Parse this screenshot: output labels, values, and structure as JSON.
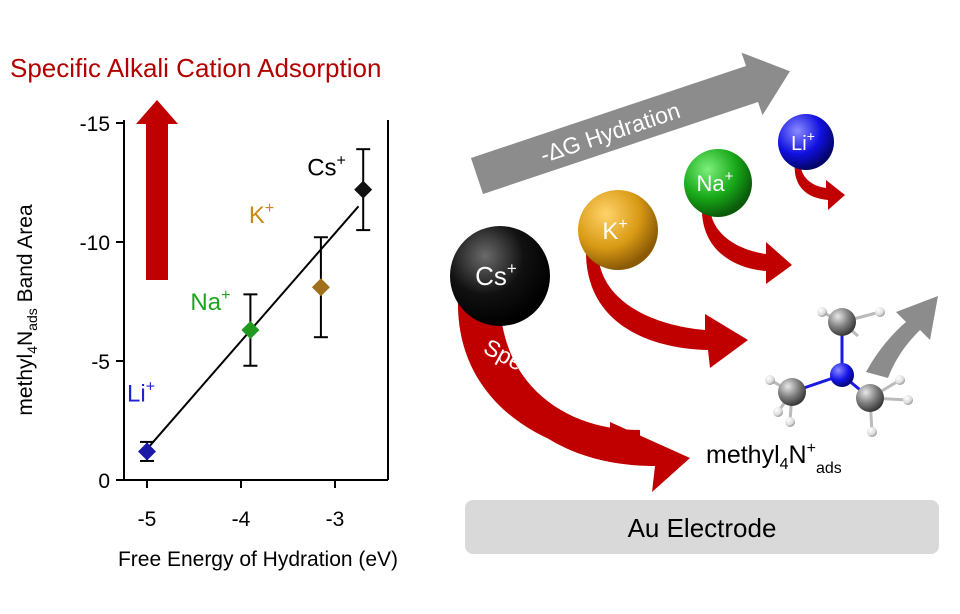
{
  "headline": "Specific Alkali Cation Adsorption",
  "colors": {
    "dark_red": "#b20000",
    "arrow_red": "#c00000",
    "gray_arrow": "#8c8c8c",
    "electrode": "#d9d9d9",
    "li": "#1f1fd6",
    "na": "#1ea51e",
    "k": "#c88c14",
    "cs": "#000000",
    "marker_li": "#1a1aa6",
    "marker_na": "#1f9a1f",
    "marker_k": "#a0701a",
    "marker_cs": "#111111"
  },
  "chart_data": {
    "type": "scatter",
    "xlabel": "Free Energy of Hydration (eV)",
    "ylabel_parts": {
      "base": "methyl",
      "sub1": "4",
      "mid": "N",
      "sub2": "ads",
      "end": " Band Area"
    },
    "xlim": [
      -5.3,
      -2.2
    ],
    "ylim": [
      0.5,
      -15.5
    ],
    "x_ticks": [
      -5,
      -4,
      -3
    ],
    "y_ticks": [
      -15,
      -10,
      -5,
      0
    ],
    "grid": false,
    "fit_line": {
      "x": [
        -5.0,
        -2.75
      ],
      "y": [
        -1.3,
        -11.5
      ]
    },
    "series": [
      {
        "points": [
          {
            "label": "Li",
            "sup": "+",
            "x": -5.0,
            "y": -1.2,
            "err": 0.4,
            "color_key": "marker_li",
            "text_color_key": "li"
          },
          {
            "label": "Na",
            "sup": "+",
            "x": -3.9,
            "y": -6.3,
            "err": 1.5,
            "color_key": "marker_na",
            "text_color_key": "na"
          },
          {
            "label": "K",
            "sup": "+",
            "x": -3.15,
            "y": -8.1,
            "err": 2.1,
            "color_key": "marker_k",
            "text_color_key": "k"
          },
          {
            "label": "Cs",
            "sup": "+",
            "x": -2.7,
            "y": -12.2,
            "err": 1.7,
            "color_key": "marker_cs",
            "text_color_key": "cs"
          }
        ]
      }
    ]
  },
  "diagram": {
    "hydration_arrow_label": "-ΔG Hydration",
    "specific_ads_label": "Specific Ads.",
    "molecule_label": {
      "base": "methyl",
      "sub1": "4",
      "mid": "N",
      "sup": "+",
      "sub2": "ads"
    },
    "electrode_label": "Au Electrode",
    "cations": [
      {
        "label": "Cs",
        "sup": "+",
        "color_key": "cs"
      },
      {
        "label": "K",
        "sup": "+",
        "color_key": "k"
      },
      {
        "label": "Na",
        "sup": "+",
        "color_key": "na"
      },
      {
        "label": "Li",
        "sup": "+",
        "color_key": "li"
      }
    ]
  }
}
